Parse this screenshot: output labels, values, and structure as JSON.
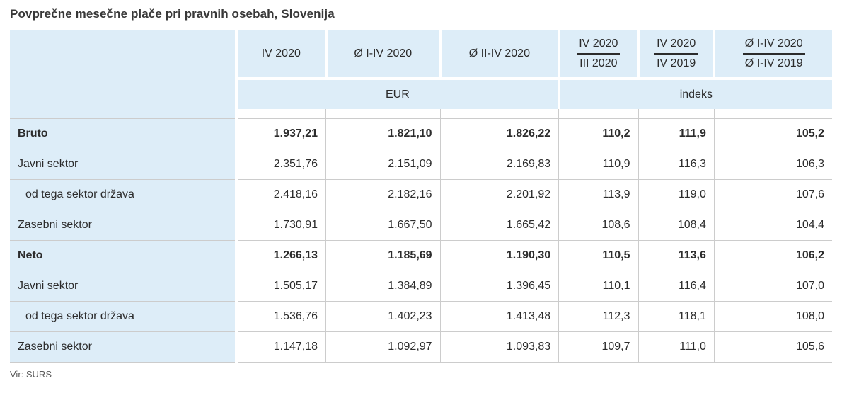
{
  "title": "Povprečne mesečne plače pri pravnih osebah, Slovenija",
  "source": "Vir: SURS",
  "colors": {
    "header_bg": "#ddedf8",
    "grid_border": "#cccccc",
    "text": "#2c2c2c"
  },
  "table": {
    "col_headers": [
      "IV 2020",
      "Ø I-IV 2020",
      "Ø II-IV 2020"
    ],
    "ratio_headers": [
      {
        "top": "IV 2020",
        "bottom": "III 2020"
      },
      {
        "top": "IV 2020",
        "bottom": "IV 2019"
      },
      {
        "top": "Ø I-IV 2020",
        "bottom": "Ø I-IV 2019"
      }
    ],
    "group_headers": {
      "eur": "EUR",
      "indeks": "indeks"
    },
    "rows": [
      {
        "label": "Bruto",
        "bold": true,
        "indent": false,
        "values": [
          "1.937,21",
          "1.821,10",
          "1.826,22",
          "110,2",
          "111,9",
          "105,2"
        ]
      },
      {
        "label": "Javni sektor",
        "bold": false,
        "indent": false,
        "values": [
          "2.351,76",
          "2.151,09",
          "2.169,83",
          "110,9",
          "116,3",
          "106,3"
        ]
      },
      {
        "label": "od tega sektor država",
        "bold": false,
        "indent": true,
        "values": [
          "2.418,16",
          "2.182,16",
          "2.201,92",
          "113,9",
          "119,0",
          "107,6"
        ]
      },
      {
        "label": "Zasebni sektor",
        "bold": false,
        "indent": false,
        "values": [
          "1.730,91",
          "1.667,50",
          "1.665,42",
          "108,6",
          "108,4",
          "104,4"
        ]
      },
      {
        "label": "Neto",
        "bold": true,
        "indent": false,
        "values": [
          "1.266,13",
          "1.185,69",
          "1.190,30",
          "110,5",
          "113,6",
          "106,2"
        ]
      },
      {
        "label": "Javni sektor",
        "bold": false,
        "indent": false,
        "values": [
          "1.505,17",
          "1.384,89",
          "1.396,45",
          "110,1",
          "116,4",
          "107,0"
        ]
      },
      {
        "label": "od tega sektor država",
        "bold": false,
        "indent": true,
        "values": [
          "1.536,76",
          "1.402,23",
          "1.413,48",
          "112,3",
          "118,1",
          "108,0"
        ]
      },
      {
        "label": "Zasebni sektor",
        "bold": false,
        "indent": false,
        "values": [
          "1.147,18",
          "1.092,97",
          "1.093,83",
          "109,7",
          "111,0",
          "105,6"
        ]
      }
    ]
  },
  "chart_data": {
    "type": "table",
    "title": "Povprečne mesečne plače pri pravnih osebah, Slovenija",
    "columns": [
      "",
      "IV 2020",
      "Ø I-IV 2020",
      "Ø II-IV 2020",
      "IV 2020 / III 2020",
      "IV 2020 / IV 2019",
      "Ø I-IV 2020 / Ø I-IV 2019"
    ],
    "units": [
      "",
      "EUR",
      "EUR",
      "EUR",
      "indeks",
      "indeks",
      "indeks"
    ],
    "rows": [
      [
        "Bruto",
        "1.937,21",
        "1.821,10",
        "1.826,22",
        "110,2",
        "111,9",
        "105,2"
      ],
      [
        "Javni sektor",
        "2.351,76",
        "2.151,09",
        "2.169,83",
        "110,9",
        "116,3",
        "106,3"
      ],
      [
        "od tega sektor država",
        "2.418,16",
        "2.182,16",
        "2.201,92",
        "113,9",
        "119,0",
        "107,6"
      ],
      [
        "Zasebni sektor",
        "1.730,91",
        "1.667,50",
        "1.665,42",
        "108,6",
        "108,4",
        "104,4"
      ],
      [
        "Neto",
        "1.266,13",
        "1.185,69",
        "1.190,30",
        "110,5",
        "113,6",
        "106,2"
      ],
      [
        "Javni sektor",
        "1.505,17",
        "1.384,89",
        "1.396,45",
        "110,1",
        "116,4",
        "107,0"
      ],
      [
        "od tega sektor država",
        "1.536,76",
        "1.402,23",
        "1.413,48",
        "112,3",
        "118,1",
        "108,0"
      ],
      [
        "Zasebni sektor",
        "1.147,18",
        "1.092,97",
        "1.093,83",
        "109,7",
        "111,0",
        "105,6"
      ]
    ],
    "source": "Vir: SURS"
  }
}
